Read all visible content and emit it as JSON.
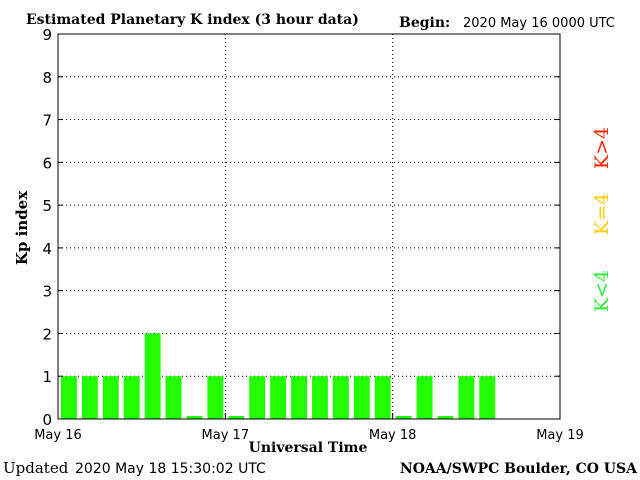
{
  "chart_data": {
    "type": "bar",
    "title": "Estimated Planetary K index (3 hour data)",
    "begin_label": "Begin:",
    "begin_value": "2020 May 16 0000 UTC",
    "xlabel": "Universal Time",
    "ylabel": "Kp index",
    "ylim": [
      0,
      9
    ],
    "yticks": [
      "0",
      "1",
      "2",
      "3",
      "4",
      "5",
      "6",
      "7",
      "8",
      "9"
    ],
    "xticks": [
      "May 16",
      "May 17",
      "May 18",
      "May 19"
    ],
    "bins_total": 24,
    "values": [
      1,
      1,
      1,
      1,
      2,
      1,
      0,
      1,
      0,
      1,
      1,
      1,
      1,
      1,
      1,
      1,
      0,
      1,
      0,
      1,
      1
    ],
    "bar_color": "#22ff00",
    "grid": "dotted",
    "legend": [
      {
        "label": "K<4",
        "color": "#33ee33"
      },
      {
        "label": "K=4",
        "color": "#ffcc00"
      },
      {
        "label": "K>4",
        "color": "#ff2200"
      }
    ],
    "legend_position": "right"
  },
  "footer": {
    "updated_label": "Updated",
    "updated_value": "2020 May 18 15:30:02 UTC",
    "source": "NOAA/SWPC Boulder, CO USA"
  }
}
